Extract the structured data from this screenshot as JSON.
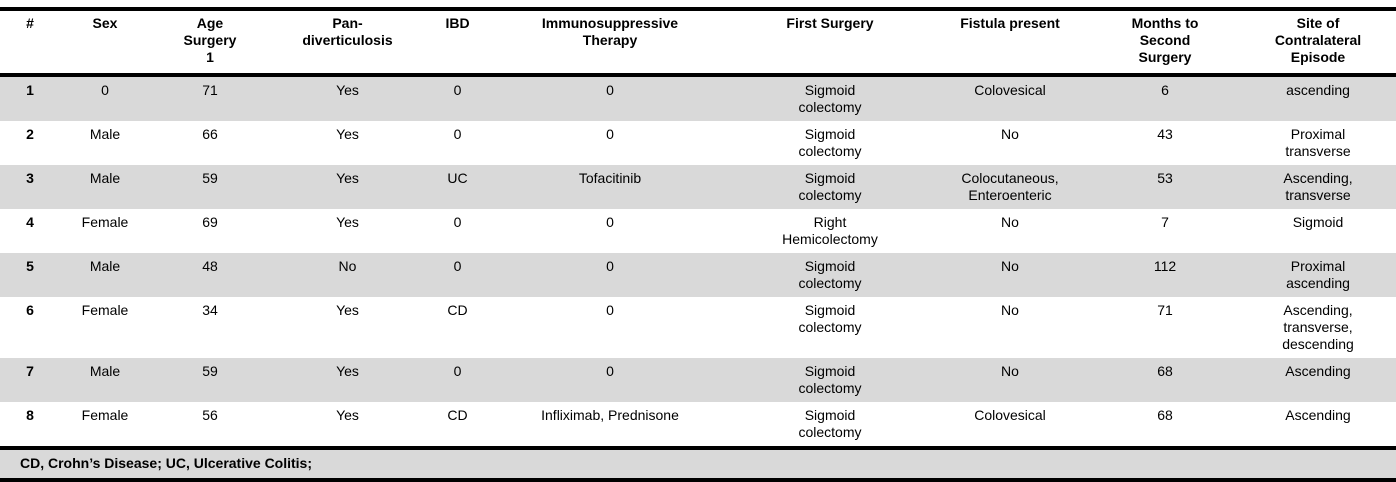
{
  "table": {
    "title": "patient-characteristics",
    "columns": [
      {
        "label": "#"
      },
      {
        "label": "Sex"
      },
      {
        "label": "Age\nSurgery\n1"
      },
      {
        "label": "Pan-\ndiverticulosis"
      },
      {
        "label": "IBD"
      },
      {
        "label": "Immunosuppressive\nTherapy"
      },
      {
        "label": "First Surgery"
      },
      {
        "label": "Fistula present"
      },
      {
        "label": "Months to\nSecond\nSurgery"
      },
      {
        "label": "Site of\nContralateral\nEpisode"
      }
    ],
    "rows": [
      [
        "1",
        "0",
        "71",
        "Yes",
        "0",
        "0",
        "Sigmoid\ncolectomy",
        "Colovesical",
        "6",
        "ascending"
      ],
      [
        "2",
        "Male",
        "66",
        "Yes",
        "0",
        "0",
        "Sigmoid\ncolectomy",
        "No",
        "43",
        "Proximal\ntransverse"
      ],
      [
        "3",
        "Male",
        "59",
        "Yes",
        "UC",
        "Tofacitinib",
        "Sigmoid\ncolectomy",
        "Colocutaneous,\nEnteroenteric",
        "53",
        "Ascending,\ntransverse"
      ],
      [
        "4",
        "Female",
        "69",
        "Yes",
        "0",
        "0",
        "Right\nHemicolectomy",
        "No",
        "7",
        "Sigmoid"
      ],
      [
        "5",
        "Male",
        "48",
        "No",
        "0",
        "0",
        "Sigmoid\ncolectomy",
        "No",
        "112",
        "Proximal\nascending"
      ],
      [
        "6",
        "Female",
        "34",
        "Yes",
        "CD",
        "0",
        "Sigmoid\ncolectomy",
        "No",
        "71",
        "Ascending,\ntransverse,\ndescending"
      ],
      [
        "7",
        "Male",
        "59",
        "Yes",
        "0",
        "0",
        "Sigmoid\ncolectomy",
        "No",
        "68",
        "Ascending"
      ],
      [
        "8",
        "Female",
        "56",
        "Yes",
        "CD",
        "Infliximab, Prednisone",
        "Sigmoid\ncolectomy",
        "Colovesical",
        "68",
        "Ascending"
      ]
    ],
    "footnote": "CD, Crohn’s Disease; UC, Ulcerative Colitis;",
    "colors": {
      "stripe": "#d9d9d9",
      "border": "#000000",
      "background": "#ffffff"
    }
  }
}
